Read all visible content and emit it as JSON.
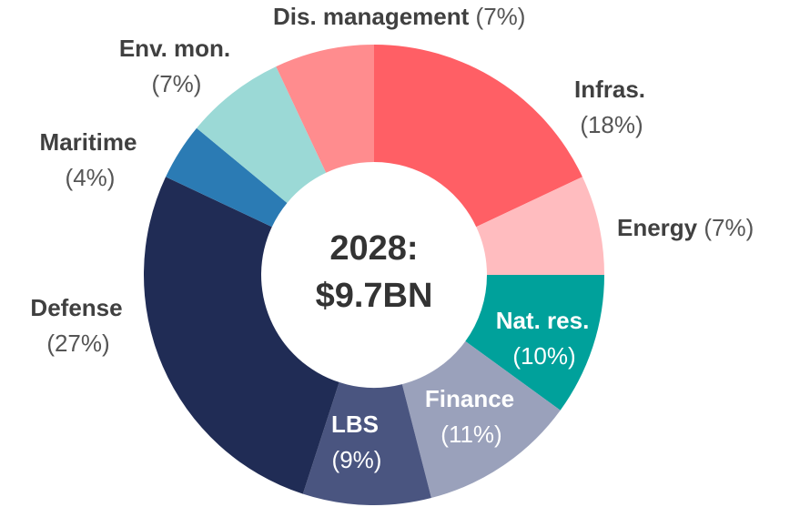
{
  "chart_data": {
    "type": "donut",
    "center_label": [
      "2028:",
      "$9.7BN"
    ],
    "categories": [
      "Infras.",
      "Energy",
      "Nat. res.",
      "Finance",
      "LBS",
      "Defense",
      "Maritime",
      "Env. mon.",
      "Dis. management"
    ],
    "values": [
      18,
      7,
      10,
      11,
      9,
      27,
      4,
      7,
      7
    ],
    "value_labels": [
      "(18%)",
      "(7%)",
      "(10%)",
      "(11%)",
      "(9%)",
      "(27%)",
      "(4%)",
      "(7%)",
      "(7%)"
    ],
    "colors": [
      "#ff5f65",
      "#ffbcbf",
      "#00a19b",
      "#9aa1bb",
      "#4a5580",
      "#202c55",
      "#2b7bb4",
      "#9bd9d6",
      "#ff8c8e"
    ]
  }
}
